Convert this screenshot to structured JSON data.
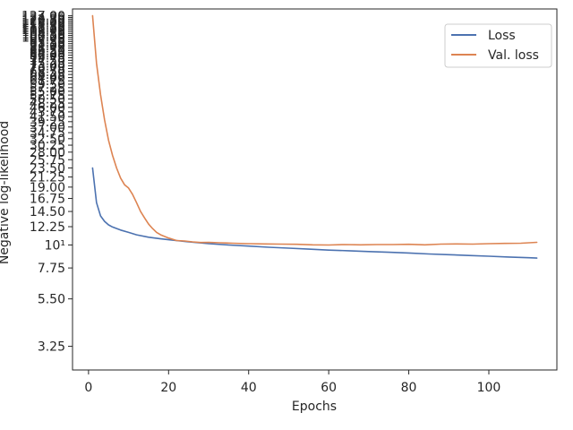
{
  "chart_data": {
    "type": "line",
    "title": "",
    "xlabel": "Epochs",
    "ylabel": "Negative log-likelihood",
    "xlim": [
      -4,
      117
    ],
    "ylim": [
      2.5,
      137
    ],
    "yscale": "log",
    "grid": false,
    "legend_position": "top-right",
    "x_ticks": [
      0,
      20,
      40,
      60,
      80,
      100
    ],
    "y_ticks": [
      {
        "value": 3.25,
        "label": "3.25"
      },
      {
        "value": 5.5,
        "label": "5.50"
      },
      {
        "value": 7.75,
        "label": "7.75"
      },
      {
        "value": 10,
        "label": "10¹"
      },
      {
        "value": 12.25,
        "label": "12.25"
      },
      {
        "value": 14.5,
        "label": "14.50"
      },
      {
        "value": 16.75,
        "label": "16.75"
      },
      {
        "value": 19.0,
        "label": "19.00"
      },
      {
        "value": 21.25,
        "label": "21.25"
      },
      {
        "value": 23.5,
        "label": "23.50"
      },
      {
        "value": 25.75,
        "label": "25.75"
      },
      {
        "value": 28.0,
        "label": "28.00"
      },
      {
        "value": 30.25,
        "label": "30.25"
      },
      {
        "value": 32.5,
        "label": "32.50"
      },
      {
        "value": 34.75,
        "label": "34.75"
      },
      {
        "value": 37.0,
        "label": "37.00"
      },
      {
        "value": 39.25,
        "label": "39.25"
      },
      {
        "value": 41.5,
        "label": "41.50"
      },
      {
        "value": 43.75,
        "label": "43.75"
      },
      {
        "value": 46.0,
        "label": "46.00"
      },
      {
        "value": 48.25,
        "label": "48.25"
      },
      {
        "value": 50.5,
        "label": "50.50"
      },
      {
        "value": 52.75,
        "label": "52.75"
      },
      {
        "value": 55.0,
        "label": "55.00"
      },
      {
        "value": 57.25,
        "label": "57.25"
      },
      {
        "value": 59.5,
        "label": "59.50"
      },
      {
        "value": 61.75,
        "label": "61.75"
      },
      {
        "value": 64.0,
        "label": "64.00"
      },
      {
        "value": 66.25,
        "label": "66.25"
      },
      {
        "value": 68.5,
        "label": "68.50"
      },
      {
        "value": 70.75,
        "label": "70.75"
      },
      {
        "value": 73.0,
        "label": "73.00"
      },
      {
        "value": 75.25,
        "label": "75.25"
      },
      {
        "value": 77.5,
        "label": "77.50"
      },
      {
        "value": 79.75,
        "label": "79.75"
      },
      {
        "value": 82.0,
        "label": "82.00"
      },
      {
        "value": 84.25,
        "label": "84.25"
      },
      {
        "value": 86.5,
        "label": "86.50"
      },
      {
        "value": 88.75,
        "label": "88.75"
      },
      {
        "value": 91.0,
        "label": "91.00"
      },
      {
        "value": 93.25,
        "label": "93.25"
      },
      {
        "value": 95.5,
        "label": "95.50"
      },
      {
        "value": 97.75,
        "label": "97.75"
      },
      {
        "value": 100.0,
        "label": "100.00"
      },
      {
        "value": 102.25,
        "label": "102.25"
      },
      {
        "value": 104.5,
        "label": "104.50"
      },
      {
        "value": 106.75,
        "label": "106.75"
      },
      {
        "value": 109.0,
        "label": "109.00"
      },
      {
        "value": 111.25,
        "label": "111.25"
      },
      {
        "value": 113.5,
        "label": "113.50"
      },
      {
        "value": 115.75,
        "label": "115.75"
      },
      {
        "value": 118.0,
        "label": "118.00"
      },
      {
        "value": 120.25,
        "label": "120.25"
      },
      {
        "value": 122.5,
        "label": "122.50"
      },
      {
        "value": 124.75,
        "label": "124.75"
      },
      {
        "value": 127.0,
        "label": "127.00"
      }
    ],
    "series": [
      {
        "name": "Loss",
        "color": "#4c72b0",
        "x": [
          1,
          2,
          3,
          4,
          5,
          6,
          8,
          10,
          12,
          15,
          18,
          20,
          25,
          30,
          35,
          40,
          45,
          50,
          55,
          60,
          65,
          70,
          75,
          80,
          85,
          90,
          95,
          100,
          105,
          110,
          112
        ],
        "y": [
          23.5,
          16.0,
          13.8,
          13.0,
          12.5,
          12.2,
          11.8,
          11.5,
          11.2,
          10.9,
          10.7,
          10.6,
          10.35,
          10.15,
          10.0,
          9.88,
          9.75,
          9.65,
          9.55,
          9.45,
          9.38,
          9.3,
          9.22,
          9.15,
          9.05,
          8.98,
          8.9,
          8.83,
          8.75,
          8.68,
          8.65
        ]
      },
      {
        "name": "Val. loss",
        "color": "#dd8452",
        "x": [
          1,
          2,
          3,
          4,
          5,
          6,
          7,
          8,
          9,
          10,
          11,
          12,
          13,
          14,
          15,
          16,
          17,
          18,
          20,
          22,
          24,
          26,
          28,
          30,
          33,
          36,
          40,
          44,
          48,
          52,
          56,
          60,
          64,
          68,
          72,
          76,
          80,
          84,
          88,
          92,
          96,
          100,
          104,
          108,
          112
        ],
        "y": [
          127.0,
          75.0,
          53.0,
          40.0,
          32.0,
          27.0,
          23.5,
          21.0,
          19.5,
          18.8,
          17.5,
          16.0,
          14.5,
          13.5,
          12.6,
          12.0,
          11.5,
          11.2,
          10.8,
          10.5,
          10.45,
          10.35,
          10.28,
          10.3,
          10.25,
          10.2,
          10.15,
          10.12,
          10.1,
          10.08,
          10.02,
          10.0,
          10.05,
          10.02,
          10.05,
          10.05,
          10.08,
          10.02,
          10.1,
          10.12,
          10.1,
          10.15,
          10.18,
          10.2,
          10.3
        ]
      }
    ]
  }
}
